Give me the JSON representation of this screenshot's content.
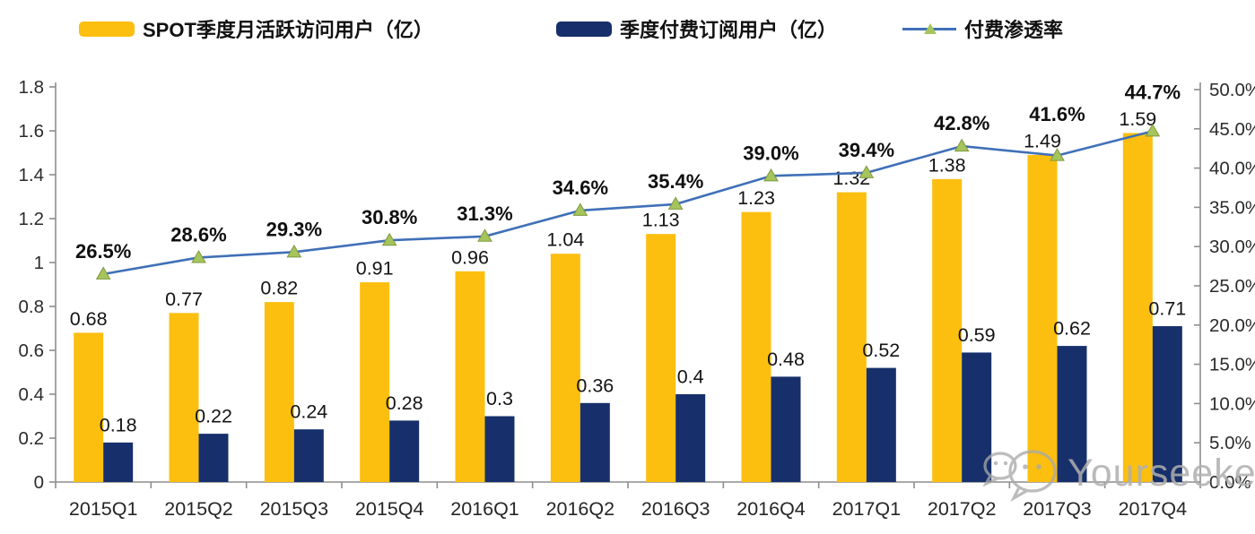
{
  "watermark": {
    "text": "Yourseeker",
    "icon": "wechat-icon",
    "color": "#ABABAB"
  },
  "colors": {
    "mau_bar": "#FCBF0F",
    "subs_bar": "#17306B",
    "line": "#4070B8",
    "marker": "#A6C45C",
    "marker_edge": "#7E9A3E",
    "axis": "#8E8E8E",
    "label_text": "#141414"
  },
  "chart_data": {
    "type": "bar",
    "subtype": "combo-bar-line",
    "categories": [
      "2015Q1",
      "2015Q2",
      "2015Q3",
      "2015Q4",
      "2016Q1",
      "2016Q2",
      "2016Q3",
      "2016Q4",
      "2017Q1",
      "2017Q2",
      "2017Q3",
      "2017Q4"
    ],
    "series": [
      {
        "name": "SPOT季度月活跃访问用户（亿）",
        "type": "bar",
        "axis": "left",
        "color": "#FCBF0F",
        "values": [
          0.68,
          0.77,
          0.82,
          0.91,
          0.96,
          1.04,
          1.13,
          1.23,
          1.32,
          1.38,
          1.49,
          1.59
        ]
      },
      {
        "name": "季度付费订阅用户（亿）",
        "type": "bar",
        "axis": "left",
        "color": "#17306B",
        "values": [
          0.18,
          0.22,
          0.24,
          0.28,
          0.3,
          0.36,
          0.4,
          0.48,
          0.52,
          0.59,
          0.62,
          0.71
        ]
      },
      {
        "name": "付费渗透率",
        "type": "line",
        "axis": "right",
        "color": "#4070B8",
        "marker": "triangle-up",
        "marker_color": "#A6C45C",
        "values": [
          26.5,
          28.6,
          29.3,
          30.8,
          31.3,
          34.6,
          35.4,
          39.0,
          39.4,
          42.8,
          41.6,
          44.7
        ]
      }
    ],
    "left_axis": {
      "min": 0,
      "max": 1.8,
      "step": 0.2,
      "tick_labels": [
        "0",
        "0.2",
        "0.4",
        "0.6",
        "0.8",
        "1",
        "1.2",
        "1.4",
        "1.6",
        "1.8"
      ]
    },
    "right_axis": {
      "min": 0,
      "max": 50,
      "step": 5,
      "tick_labels": [
        "0.0%",
        "5.0%",
        "10.0%",
        "15.0%",
        "20.0%",
        "25.0%",
        "30.0%",
        "35.0%",
        "40.0%",
        "45.0%",
        "50.0%"
      ]
    },
    "grid": false,
    "legend_position": "top",
    "title": "",
    "xlabel": "",
    "ylabel": ""
  }
}
